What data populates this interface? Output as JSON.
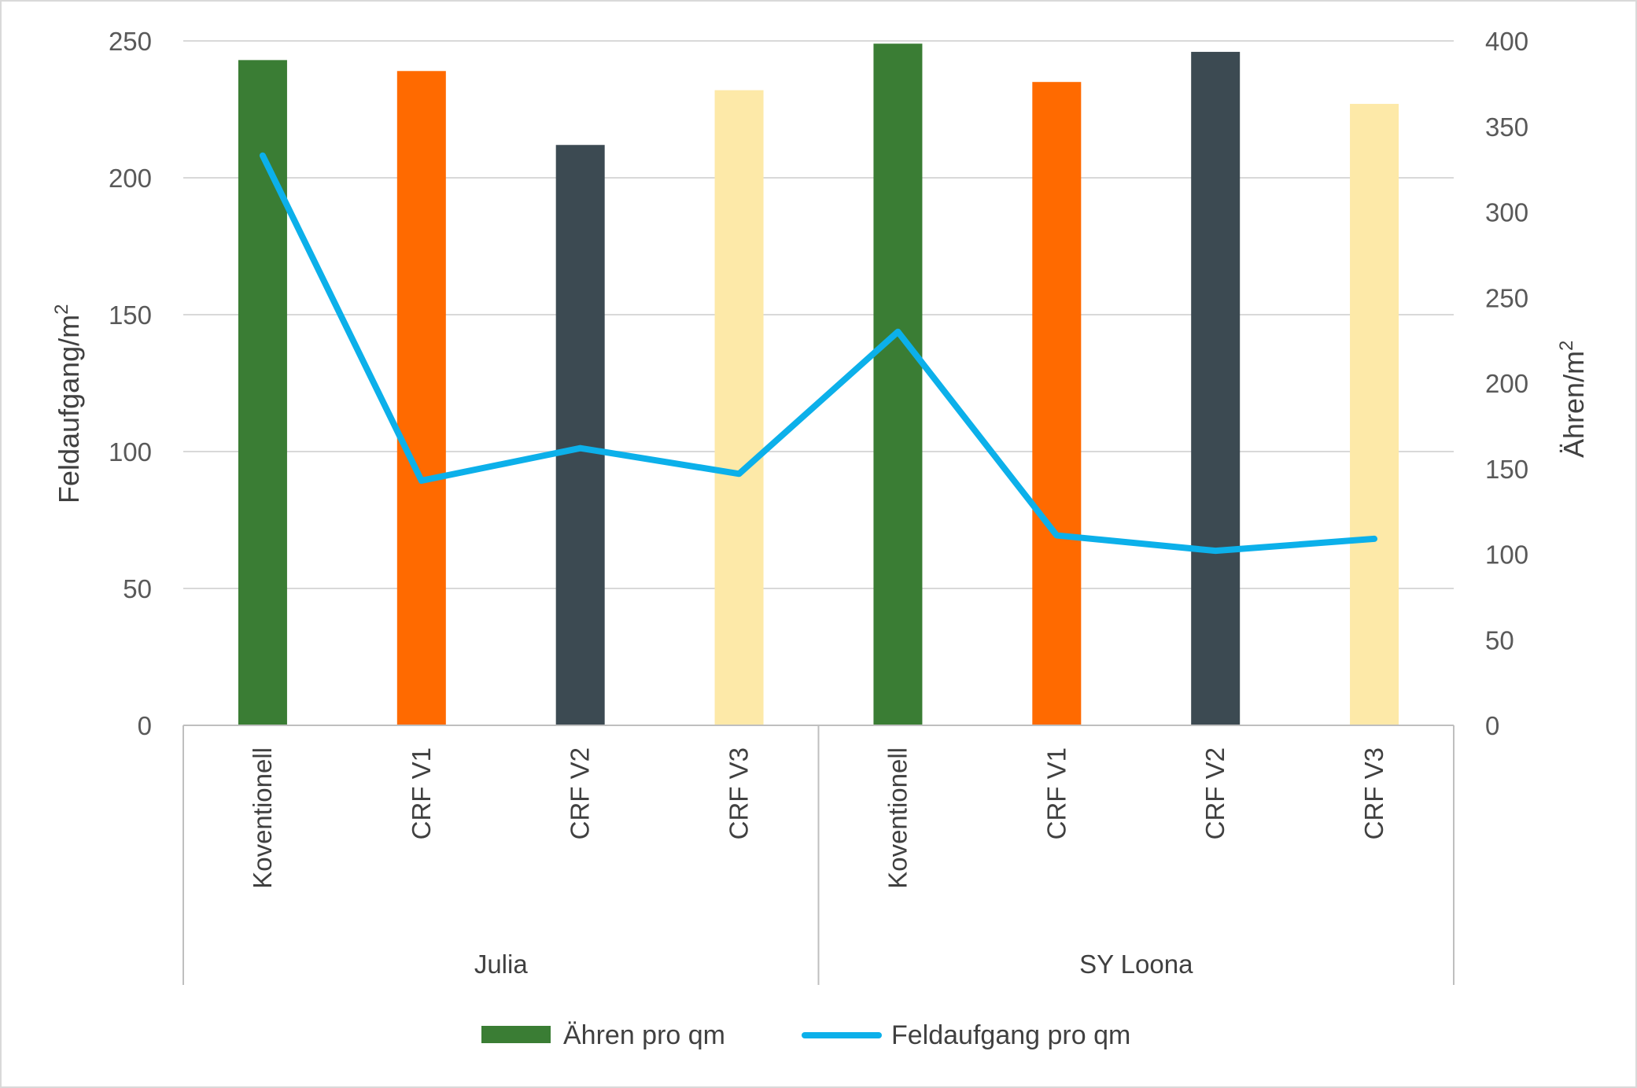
{
  "chart_data": {
    "type": "bar+line",
    "groups": [
      {
        "name": "Julia",
        "categories": [
          "Koventionell",
          "CRF V1",
          "CRF V2",
          "CRF V3"
        ]
      },
      {
        "name": "SY Loona",
        "categories": [
          "Koventionell",
          "CRF V1",
          "CRF V2",
          "CRF V3"
        ]
      }
    ],
    "series": [
      {
        "name": "Ähren pro qm",
        "type": "bar",
        "axis": "left",
        "values": [
          243,
          239,
          212,
          232,
          249,
          235,
          246,
          227
        ],
        "colors": [
          "#3a7d34",
          "#ff6a00",
          "#3c4a52",
          "#fde9a8",
          "#3a7d34",
          "#ff6a00",
          "#3c4a52",
          "#fde9a8"
        ]
      },
      {
        "name": "Feldaufgang pro qm",
        "type": "line",
        "axis": "right",
        "color": "#0cb0ea",
        "values": [
          333,
          143,
          162,
          147,
          230,
          111,
          102,
          109
        ]
      }
    ],
    "y_left": {
      "label": "Feldaufgang/m",
      "label_sup": "2",
      "min": 0,
      "max": 250,
      "ticks": [
        "0",
        "50",
        "100",
        "150",
        "200",
        "250"
      ]
    },
    "y_right": {
      "label": "Ähren/m",
      "label_sup": "2",
      "min": 0,
      "max": 400,
      "ticks": [
        "0",
        "50",
        "100",
        "150",
        "200",
        "250",
        "300",
        "350",
        "400"
      ]
    },
    "grid": true,
    "legend": {
      "position": "bottom",
      "items": [
        "Ähren pro qm",
        "Feldaufgang pro qm"
      ]
    }
  }
}
